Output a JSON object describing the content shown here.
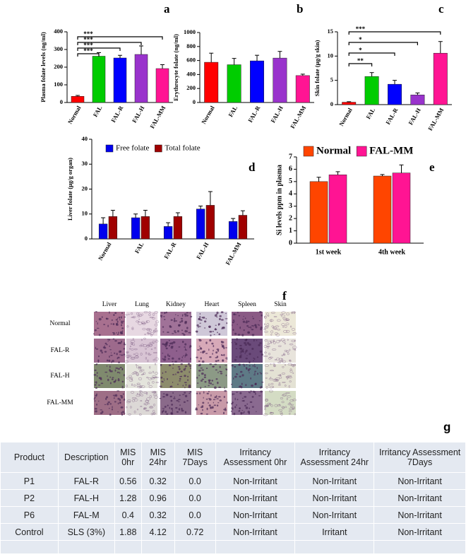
{
  "chart_data": [
    {
      "type": "bar",
      "panel_label": "a",
      "ylabel": "Plasma folate levels (ng/ml)",
      "categories": [
        "Normal",
        "FAL",
        "FAL-R",
        "FAL-H",
        "FAL-MM"
      ],
      "series": [
        {
          "colors": [
            "#ff0000",
            "#00cc00",
            "#0000ff",
            "#9933cc",
            "#ff1493"
          ],
          "values": [
            35,
            262,
            252,
            272,
            192
          ],
          "errors": [
            5,
            20,
            15,
            48,
            22
          ]
        }
      ],
      "ylim": [
        0,
        400
      ],
      "yticks": [
        0,
        100,
        200,
        300,
        400
      ],
      "annotations": [
        {
          "text": "***",
          "from": "Normal",
          "to": "FAL"
        },
        {
          "text": "***",
          "from": "Normal",
          "to": "FAL-R"
        },
        {
          "text": "***",
          "from": "Normal",
          "to": "FAL-H"
        },
        {
          "text": "***",
          "from": "Normal",
          "to": "FAL-MM"
        }
      ]
    },
    {
      "type": "bar",
      "panel_label": "b",
      "ylabel": "Erythrocyte folate (ng/ml)",
      "categories": [
        "Normal",
        "FAL",
        "FAL-R",
        "FAL-H",
        "FAL-MM"
      ],
      "series": [
        {
          "colors": [
            "#ff0000",
            "#00cc00",
            "#0000ff",
            "#9933cc",
            "#ff1493"
          ],
          "values": [
            575,
            540,
            595,
            635,
            385
          ],
          "errors": [
            130,
            90,
            80,
            95,
            20
          ]
        }
      ],
      "ylim": [
        0,
        1000
      ],
      "yticks": [
        0,
        200,
        400,
        600,
        800,
        1000
      ]
    },
    {
      "type": "bar",
      "panel_label": "c",
      "ylabel": "Skin folate (µg/g skin)",
      "categories": [
        "Normal",
        "FAL",
        "FAL-R",
        "FAL-H",
        "FAL-MM"
      ],
      "series": [
        {
          "colors": [
            "#ff0000",
            "#00cc00",
            "#0000ff",
            "#9933cc",
            "#ff1493"
          ],
          "values": [
            0.5,
            5.8,
            4.2,
            2.0,
            10.6
          ],
          "errors": [
            0.1,
            0.8,
            0.8,
            0.4,
            2.4
          ]
        }
      ],
      "ylim": [
        0,
        15
      ],
      "yticks": [
        0,
        5,
        10,
        15
      ],
      "annotations": [
        {
          "text": "**",
          "from": "Normal",
          "to": "FAL"
        },
        {
          "text": "*",
          "from": "Normal",
          "to": "FAL-R"
        },
        {
          "text": "*",
          "from": "Normal",
          "to": "FAL-H"
        },
        {
          "text": "***",
          "from": "Normal",
          "to": "FAL-MM"
        }
      ]
    },
    {
      "type": "bar",
      "panel_label": "d",
      "ylabel": "Liver folate (µg/g organ)",
      "categories": [
        "Normal",
        "FAL",
        "FAL-R",
        "FAL-H",
        "FAL-MM"
      ],
      "series": [
        {
          "name": "Free folate",
          "color": "#0000ee",
          "values": [
            6,
            8.5,
            5,
            12,
            7
          ],
          "errors": [
            2.5,
            1.5,
            1.5,
            1.2,
            1.2
          ]
        },
        {
          "name": "Total folate",
          "color": "#a00000",
          "values": [
            9,
            9,
            9,
            13.5,
            9.5
          ],
          "errors": [
            2.5,
            2.5,
            1.5,
            5.5,
            1.8
          ]
        }
      ],
      "ylim": [
        0,
        40
      ],
      "yticks": [
        0,
        10,
        20,
        30,
        40
      ],
      "legend": "top"
    },
    {
      "type": "bar",
      "panel_label": "e",
      "ylabel": "Si levels ppm in plasma",
      "categories": [
        "1st week",
        "4th week"
      ],
      "series": [
        {
          "name": "Normal",
          "color": "#ff4500",
          "values": [
            5.0,
            5.45
          ],
          "errors": [
            0.35,
            0.12
          ]
        },
        {
          "name": "FAL-MM",
          "color": "#ff1493",
          "values": [
            5.55,
            5.7
          ],
          "errors": [
            0.25,
            0.65
          ]
        }
      ],
      "ylim": [
        0,
        7
      ],
      "yticks": [
        0,
        1,
        2,
        3,
        4,
        5,
        6,
        7
      ],
      "legend": "top"
    }
  ],
  "histology": {
    "panel_label": "f",
    "column_headers": [
      "Liver",
      "Lung",
      "Kidney",
      "Heart",
      "Spleen",
      "Skin"
    ],
    "row_labels": [
      "Normal",
      "FAL-R",
      "FAL-H",
      "FAL-MM"
    ]
  },
  "table": {
    "panel_label": "g",
    "header": [
      "Product",
      "Description",
      "MIS 0hr",
      "MIS 24hr",
      "MIS 7Days",
      "Irritancy Assessment 0hr",
      "Irritancy Assessment 24hr",
      "Irritancy Assessment 7Days"
    ],
    "rows": [
      [
        "P1",
        "FAL-R",
        "0.56",
        "0.32",
        "0.0",
        "Non-Irritant",
        "Non-Irritant",
        "Non-Irritant"
      ],
      [
        "P2",
        "FAL-H",
        "1.28",
        "0.96",
        "0.0",
        "Non-Irritant",
        "Non-Irritant",
        "Non-Irritant"
      ],
      [
        "P6",
        "FAL-M",
        "0.4",
        "0.32",
        "0.0",
        "Non-Irritant",
        "Non-Irritant",
        "Non-Irritant"
      ],
      [
        "Control",
        "SLS (3%)",
        "1.88",
        "4.12",
        "0.72",
        "Non-Irritant",
        "Irritant",
        "Non-Irritant"
      ]
    ]
  }
}
